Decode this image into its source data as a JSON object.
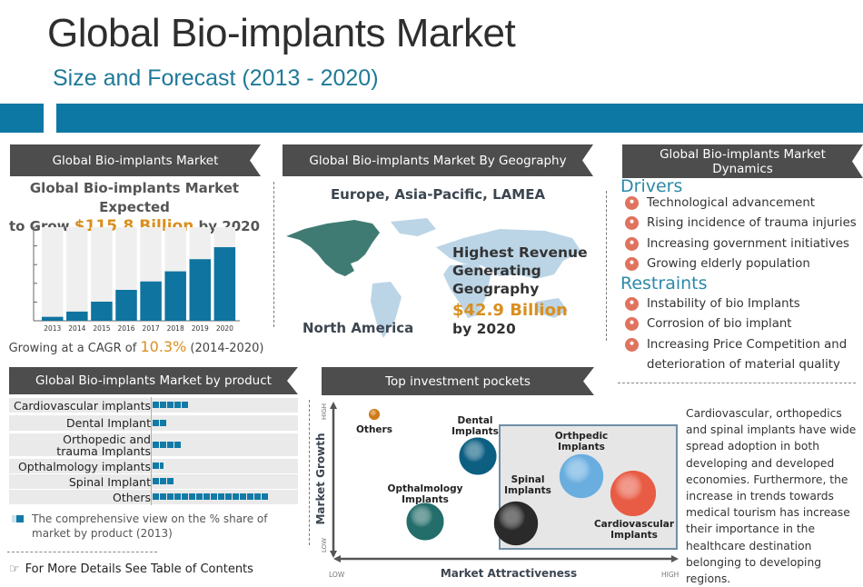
{
  "header": {
    "title": "Global Bio-implants Market",
    "subtitle": "Size and Forecast (2013 - 2020)",
    "band_color": "#0e78a4"
  },
  "market_panel": {
    "heading": "Global Bio-implants Market",
    "line1": "Global Bio-implants Market Expected",
    "line2_prefix": "to Grow ",
    "line2_value": "$115.8 Billion",
    "line2_suffix": " by 2020",
    "cagr_prefix": "Growing at a CAGR of ",
    "cagr_value": "10.3%",
    "cagr_suffix": " (2014-2020)"
  },
  "geography_panel": {
    "heading": "Global Bio-implants Market By Geography",
    "regions": "Europe, Asia-Pacific, LAMEA",
    "highlight_region": "North America",
    "highest_line1": "Highest Revenue",
    "highest_line2": "Generating",
    "highest_line3": "Geography",
    "value": "$42.9 Billion",
    "by": "by 2020"
  },
  "dynamics_panel": {
    "heading_line1": "Global Bio-implants Market",
    "heading_line2": "Dynamics",
    "drivers_title": "Drivers",
    "drivers": [
      "Technological advancement",
      "Rising incidence of trauma injuries",
      "Increasing government initiatives",
      "Growing elderly population"
    ],
    "restraints_title": "Restraints",
    "restraints": [
      "Instability of bio Implants",
      "Corrosion of bio implant",
      "Increasing Price Competition and",
      "deterioration of material quality"
    ]
  },
  "product_panel": {
    "heading": "Global Bio-implants Market by product",
    "legend_line1": "The comprehensive view on the % share of",
    "legend_line2": "market by product (2013)",
    "footer": "For More Details See Table of Contents"
  },
  "investment_panel": {
    "heading": "Top investment pockets",
    "y_axis": "Market Growth",
    "x_axis": "Market Attractiveness",
    "y_high": "HIGH",
    "y_low": "LOW",
    "x_low": "LOW",
    "x_high": "HIGH",
    "description": "Cardiovascular, orthopedics and spinal implants have wide spread adoption in both developing and developed economies. Furthermore, the increase in trends towards medical tourism has increase their importance in the healthcare destination belonging to developing regions."
  },
  "chart_data": [
    {
      "type": "bar",
      "title": "Global Bio-implants Market",
      "categories": [
        "2013",
        "2014",
        "2015",
        "2016",
        "2017",
        "2018",
        "2019",
        "2020"
      ],
      "values": [
        0.21,
        0.49,
        1.02,
        1.65,
        2.1,
        2.64,
        3.29,
        3.93
      ],
      "value_units": "relative (axis tick units; no axis labels shown)",
      "ylim": [
        0,
        5
      ],
      "xlabel": "",
      "ylabel": "",
      "grid": false,
      "bar_color": "#0f74a0",
      "bg_color": "#efefef"
    },
    {
      "type": "bar",
      "orientation": "horizontal",
      "title": "Global Bio-implants Market by product",
      "categories": [
        "Cardiovascular implants",
        "Dental Implant",
        "Orthopedic and trauma Implants",
        "Opthalmology implants",
        "Spinal Implant",
        "Others"
      ],
      "values": [
        5,
        2,
        4,
        1.5,
        3,
        16
      ],
      "value_units": "squares (each ≈ % share unit)",
      "legend": "The comprehensive view on the % share of market by product (2013)"
    },
    {
      "type": "scatter",
      "title": "Top investment pockets",
      "xlabel": "Market Attractiveness",
      "ylabel": "Market Growth",
      "xlim": [
        0,
        1
      ],
      "ylim": [
        0,
        1
      ],
      "points": [
        {
          "label": "Others",
          "x": 0.12,
          "y": 0.92,
          "size": 0.3,
          "color": "#d07a18"
        },
        {
          "label": "Dental Implants",
          "x": 0.42,
          "y": 0.65,
          "size": 0.75,
          "color": "#0d5f82"
        },
        {
          "label": "Orthpedic Implants",
          "x": 0.72,
          "y": 0.5,
          "size": 0.95,
          "color": "#6aaee0"
        },
        {
          "label": "Opthalmology Implants",
          "x": 0.26,
          "y": 0.26,
          "size": 0.75,
          "color": "#236d6a"
        },
        {
          "label": "Spinal Implants",
          "x": 0.57,
          "y": 0.22,
          "size": 0.95,
          "color": "#2a2a2a"
        },
        {
          "label": "Cardiovascular Implants",
          "x": 0.85,
          "y": 0.4,
          "size": 1.0,
          "color": "#e85c45"
        }
      ],
      "highlight_box": [
        "Orthpedic Implants",
        "Spinal Implants",
        "Cardiovascular Implants"
      ]
    }
  ]
}
